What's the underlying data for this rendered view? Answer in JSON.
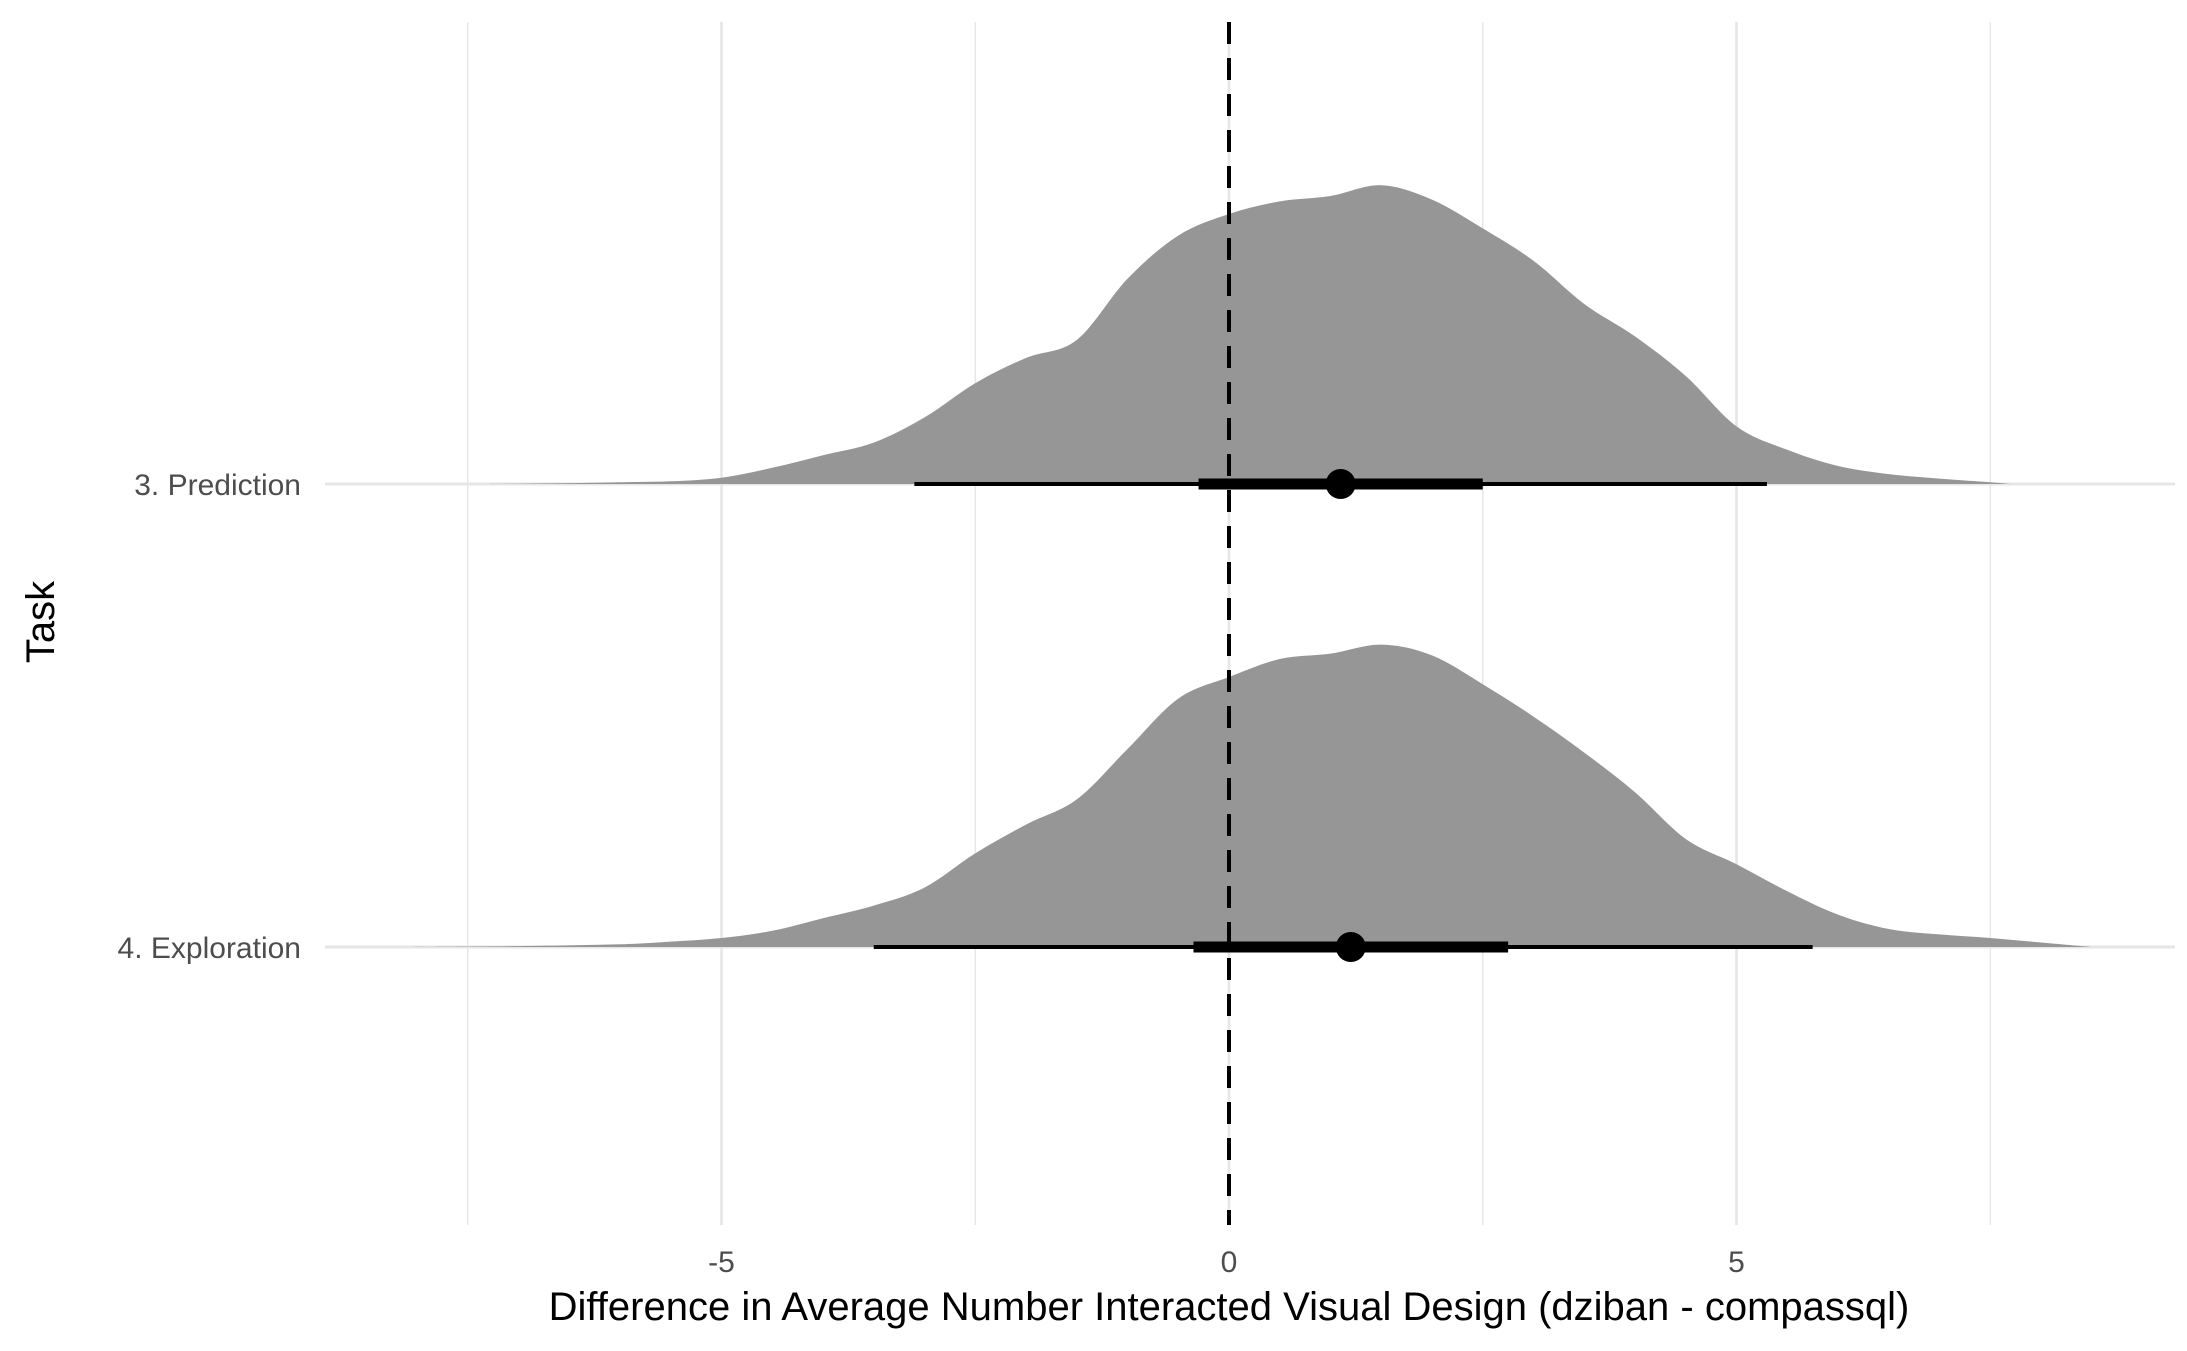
{
  "chart_data": {
    "type": "area",
    "subtype": "half-eye density with point interval",
    "title": "",
    "xlabel": "Difference in Average Number Interacted Visual Design (dziban - compassql)",
    "ylabel": "Task",
    "xlim": [
      -9.5,
      9.5
    ],
    "x_ticks": [
      -5,
      0,
      5
    ],
    "x_tick_labels": [
      "-5",
      "0",
      "5"
    ],
    "categories": [
      "3. Prediction",
      "4. Exploration"
    ],
    "reference_line": {
      "x": 0,
      "style": "dashed"
    },
    "grid": true,
    "legend": "none",
    "colors": {
      "density_fill": "#969696",
      "interval": "#000000",
      "grid": "#e6e6e6",
      "background": "#ffffff"
    },
    "series": [
      {
        "density": {
          "x": [
            -7.3,
            -6.5,
            -6.0,
            -5.5,
            -5.0,
            -4.5,
            -4.0,
            -3.5,
            -3.0,
            -2.5,
            -2.0,
            -1.5,
            -1.0,
            -0.5,
            0.0,
            0.5,
            1.0,
            1.5,
            2.0,
            2.5,
            3.0,
            3.5,
            4.0,
            4.5,
            5.0,
            5.5,
            6.0,
            6.5,
            7.0,
            7.5,
            7.7
          ],
          "y": [
            0.0,
            0.005,
            0.01,
            0.015,
            0.035,
            0.09,
            0.16,
            0.23,
            0.37,
            0.56,
            0.7,
            0.8,
            1.14,
            1.38,
            1.5,
            1.57,
            1.6,
            1.66,
            1.58,
            1.42,
            1.24,
            1.0,
            0.82,
            0.6,
            0.32,
            0.19,
            0.1,
            0.055,
            0.03,
            0.01,
            0.0
          ]
        },
        "point": 1.1,
        "interval_66": [
          -0.3,
          2.5
        ],
        "interval_95": [
          -3.1,
          5.3
        ]
      },
      {
        "density": {
          "x": [
            -8.2,
            -7.0,
            -6.0,
            -5.5,
            -5.0,
            -4.5,
            -4.0,
            -3.5,
            -3.0,
            -2.5,
            -2.0,
            -1.5,
            -1.0,
            -0.5,
            0.0,
            0.5,
            1.0,
            1.5,
            2.0,
            2.5,
            3.0,
            3.5,
            4.0,
            4.5,
            5.0,
            5.5,
            6.0,
            6.5,
            7.0,
            7.5,
            8.0,
            8.5
          ],
          "y": [
            0.0,
            0.005,
            0.015,
            0.03,
            0.05,
            0.09,
            0.16,
            0.23,
            0.33,
            0.52,
            0.68,
            0.82,
            1.1,
            1.38,
            1.5,
            1.6,
            1.63,
            1.68,
            1.62,
            1.46,
            1.28,
            1.08,
            0.86,
            0.6,
            0.46,
            0.31,
            0.18,
            0.1,
            0.07,
            0.05,
            0.025,
            0.0
          ]
        },
        "point": 1.2,
        "interval_66": [
          -0.35,
          2.75
        ],
        "interval_95": [
          -3.5,
          5.75
        ]
      }
    ]
  }
}
